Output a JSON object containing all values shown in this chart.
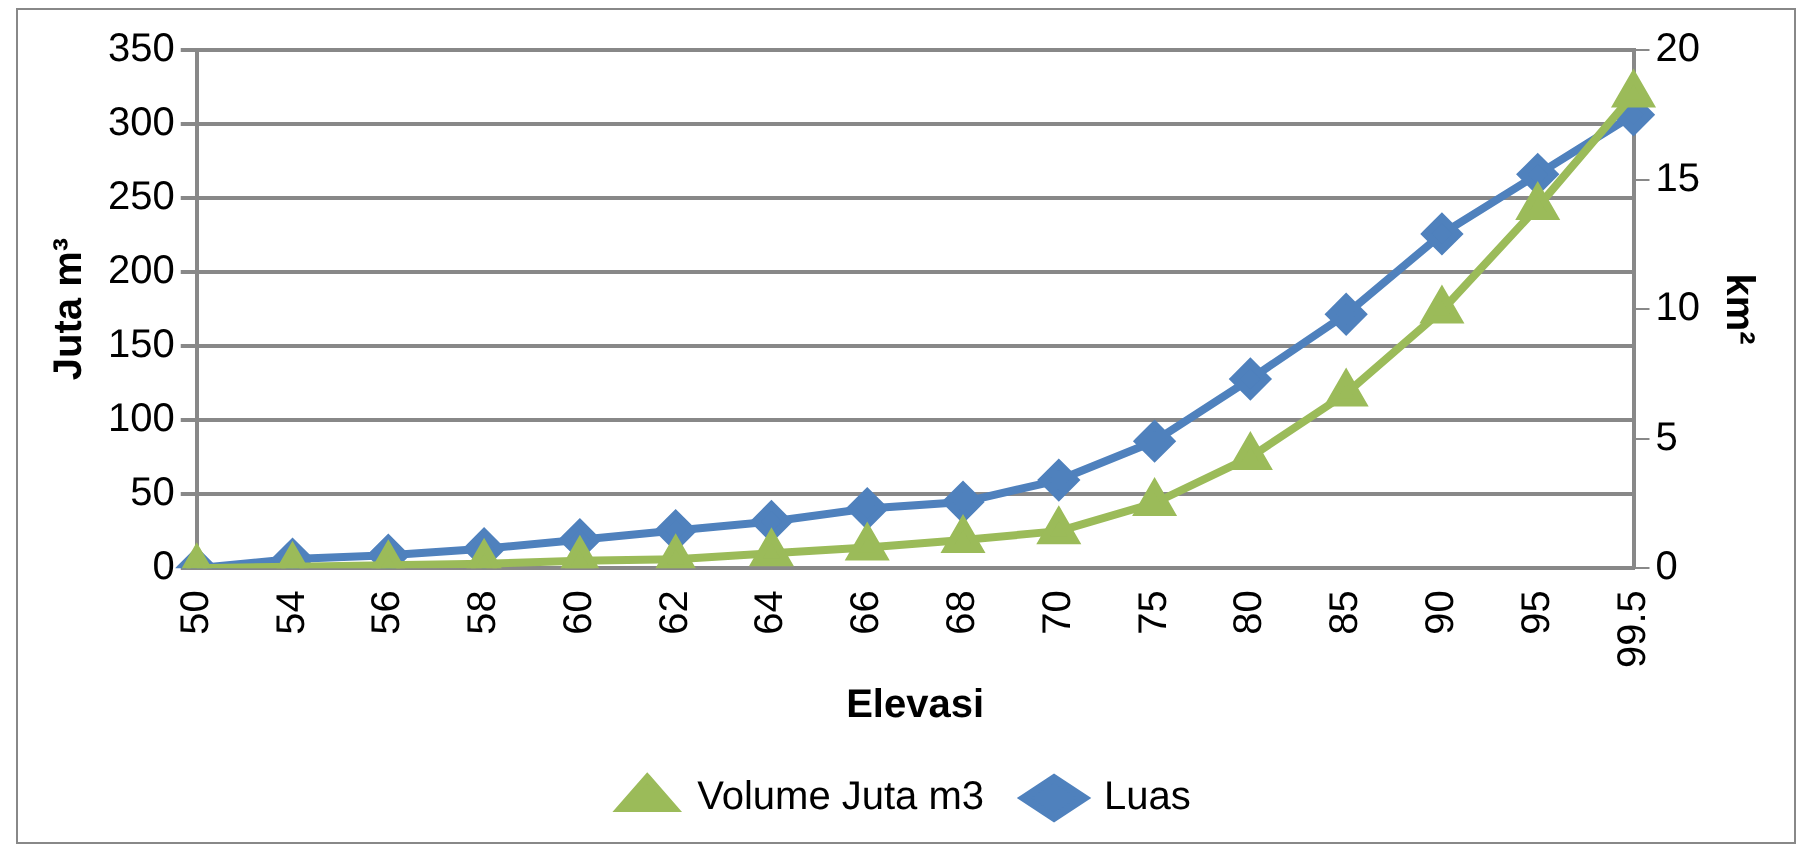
{
  "chart_data": {
    "type": "line",
    "xlabel": "Elevasi",
    "ylabel": "Juta m³",
    "y2label": "km²",
    "categories": [
      "50",
      "54",
      "56",
      "58",
      "60",
      "62",
      "64",
      "66",
      "68",
      "70",
      "75",
      "80",
      "85",
      "90",
      "95",
      "99.5"
    ],
    "series": [
      {
        "name": "Volume Juta m3",
        "color": "#9bbb59",
        "marker": "triangle",
        "values": [
          0,
          1,
          2,
          3,
          5,
          6,
          10,
          14,
          19,
          25,
          44,
          75,
          118,
          174,
          244,
          320
        ]
      },
      {
        "name": "Luas",
        "color": "#4f81bd",
        "marker": "diamond",
        "axis": "y2",
        "values": [
          0,
          0.35,
          0.5,
          0.75,
          1.1,
          1.45,
          1.8,
          2.3,
          2.55,
          3.4,
          4.9,
          7.3,
          9.8,
          12.9,
          15.2,
          17.5
        ]
      }
    ],
    "ylim": [
      0,
      350
    ],
    "yticks": [
      0,
      50,
      100,
      150,
      200,
      250,
      300,
      350
    ],
    "y2lim": [
      0,
      20
    ],
    "y2ticks": [
      0,
      5,
      10,
      15,
      20
    ],
    "grid": "y",
    "legend": "bottom"
  }
}
